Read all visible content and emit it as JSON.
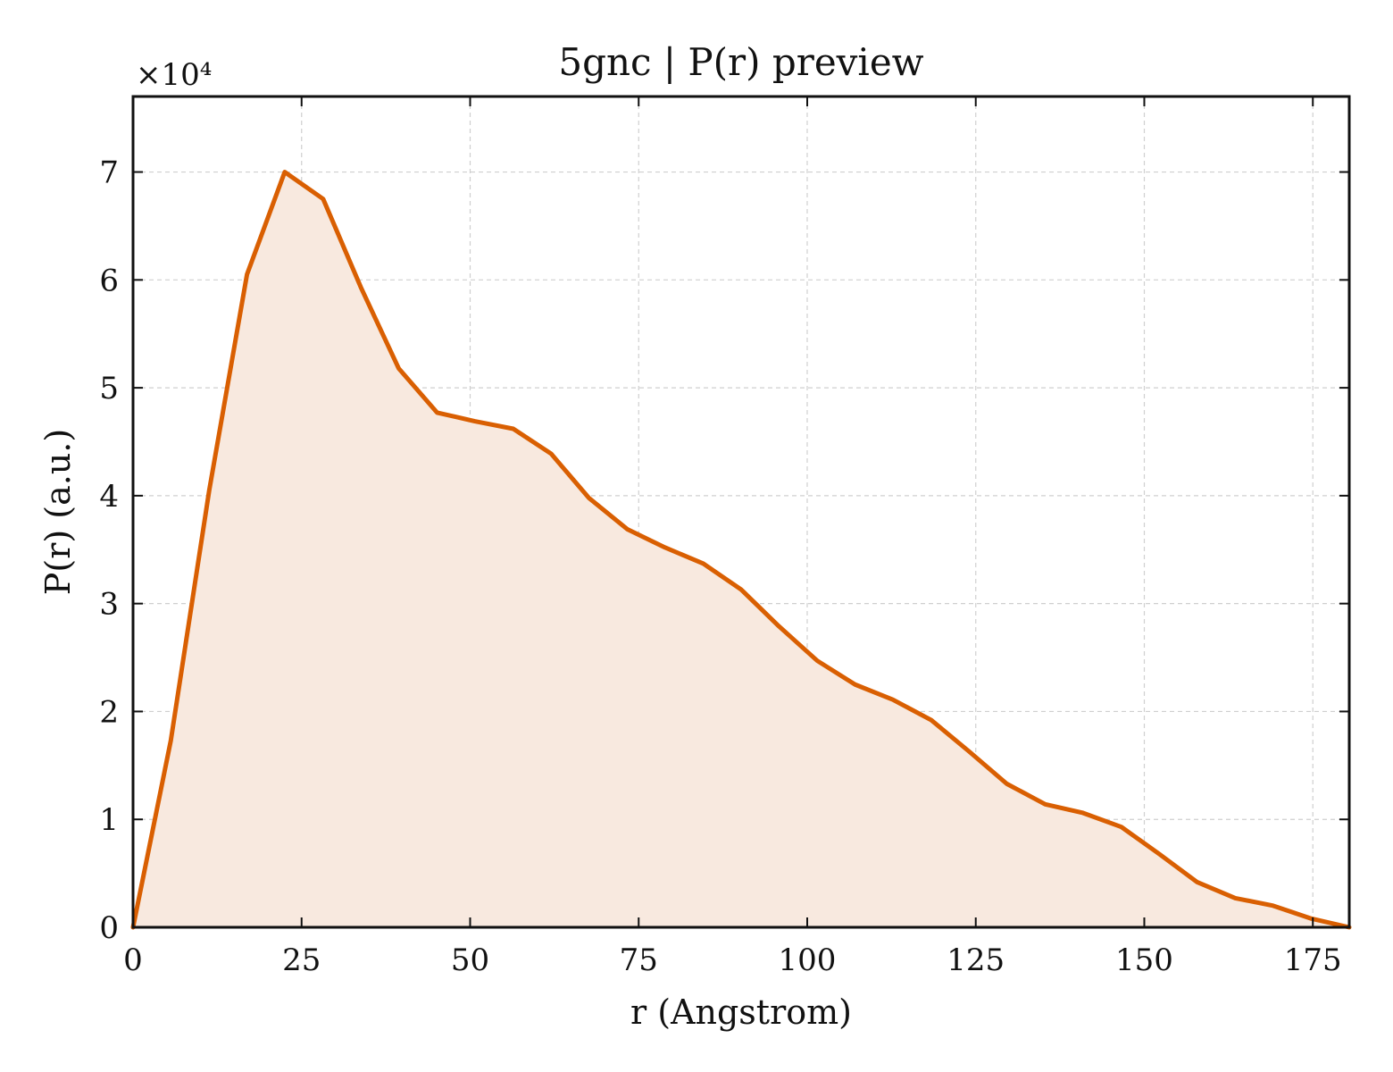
{
  "chart_data": {
    "type": "area",
    "title": "5gnc | P(r) preview",
    "xlabel": "r (Angstrom)",
    "ylabel": "P(r) (a.u.)",
    "y_multiplier_label": "×10⁴",
    "xlim": [
      0,
      180.4
    ],
    "ylim": [
      0,
      7.7
    ],
    "x_ticks": [
      0,
      25,
      50,
      75,
      100,
      125,
      150,
      175
    ],
    "x_tick_labels": [
      "0",
      "25",
      "50",
      "75",
      "100",
      "125",
      "150",
      "175"
    ],
    "y_ticks": [
      0,
      1,
      2,
      3,
      4,
      5,
      6,
      7
    ],
    "y_tick_labels": [
      "0",
      "1",
      "2",
      "3",
      "4",
      "5",
      "6",
      "7"
    ],
    "grid": true,
    "line_color": "#d95f02",
    "fill_color": "#f8e9df",
    "x": [
      0.0,
      5.6,
      11.3,
      16.9,
      22.5,
      28.2,
      33.8,
      39.4,
      45.1,
      50.7,
      56.4,
      62.0,
      67.6,
      73.3,
      78.9,
      84.6,
      90.2,
      95.8,
      101.5,
      107.1,
      112.7,
      118.4,
      124.0,
      129.6,
      135.3,
      140.9,
      146.6,
      152.2,
      157.8,
      163.5,
      169.1,
      174.8,
      180.4
    ],
    "values": [
      0.0,
      1.73,
      4.05,
      6.05,
      7.0,
      6.75,
      5.93,
      5.18,
      4.77,
      4.69,
      4.62,
      4.39,
      3.98,
      3.69,
      3.52,
      3.37,
      3.13,
      2.79,
      2.47,
      2.25,
      2.11,
      1.92,
      1.63,
      1.33,
      1.14,
      1.06,
      0.93,
      0.68,
      0.42,
      0.27,
      0.2,
      0.08,
      0.0
    ],
    "series": [
      {
        "values": [
          0.0,
          1.73,
          4.05,
          6.05,
          7.0,
          6.75,
          5.93,
          5.18,
          4.77,
          4.69,
          4.62,
          4.39,
          3.98,
          3.69,
          3.52,
          3.37,
          3.13,
          2.79,
          2.47,
          2.25,
          2.11,
          1.92,
          1.63,
          1.33,
          1.14,
          1.06,
          0.93,
          0.68,
          0.42,
          0.27,
          0.2,
          0.08,
          0.0
        ]
      }
    ]
  }
}
